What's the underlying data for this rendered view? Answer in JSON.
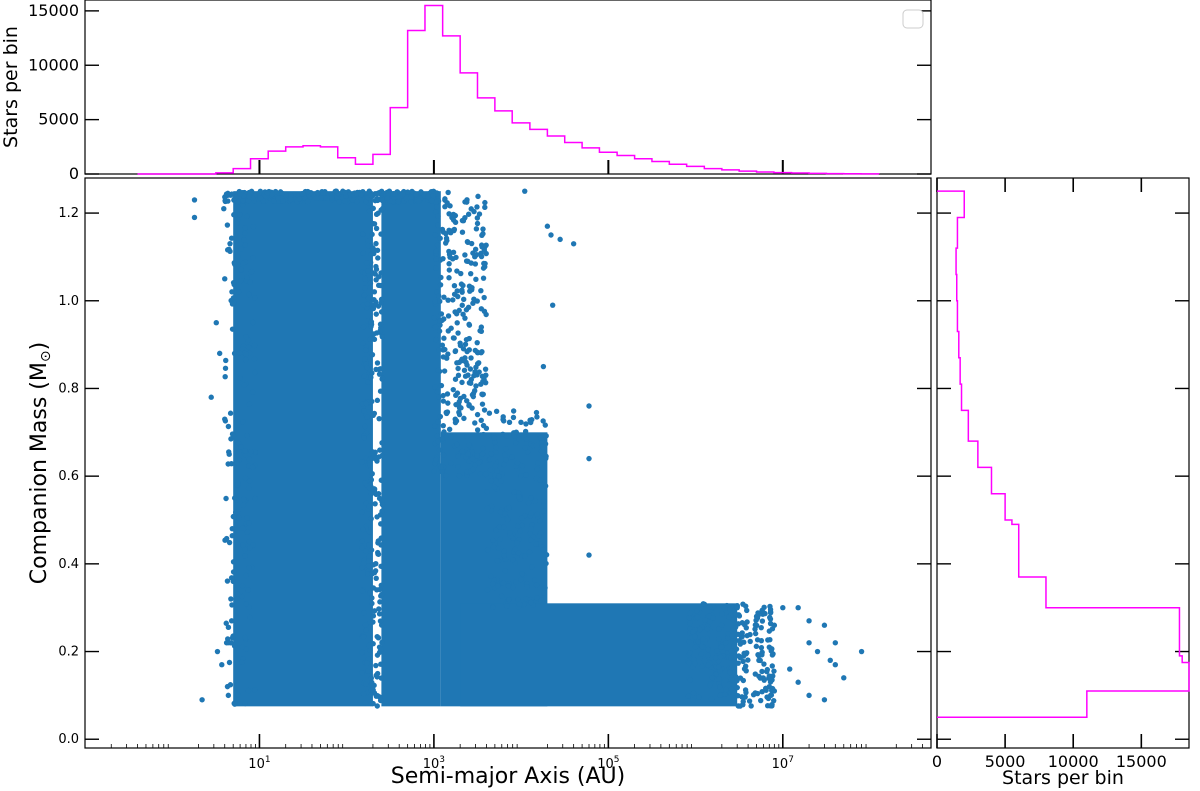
{
  "colors": {
    "scatter": "#1f77b4",
    "histogram": "#ff00ff",
    "axes": "#000000"
  },
  "chart_data": [
    {
      "id": "scatter",
      "type": "scatter",
      "xlabel_main": "Semi-major Axis (AU)",
      "ylabel_main": "Companion Mass (M",
      "ylabel_symbol": "⊙",
      "ylabel_close": ")",
      "x_scale": "log",
      "xlim": [
        0.1,
        500000000
      ],
      "ylim": [
        -0.02,
        1.28
      ],
      "x_ticks": [
        {
          "value": 10,
          "base": "10",
          "exp": "1"
        },
        {
          "value": 1000,
          "base": "10",
          "exp": "3"
        },
        {
          "value": 100000,
          "base": "10",
          "exp": "5"
        },
        {
          "value": 10000000,
          "base": "10",
          "exp": "7"
        }
      ],
      "y_ticks": [
        {
          "value": 0.0,
          "label": "0.0"
        },
        {
          "value": 0.2,
          "label": "0.2"
        },
        {
          "value": 0.4,
          "label": "0.4"
        },
        {
          "value": 0.6,
          "label": "0.6"
        },
        {
          "value": 0.8,
          "label": "0.8"
        },
        {
          "value": 1.0,
          "label": "1.0"
        },
        {
          "value": 1.2,
          "label": "1.2"
        }
      ],
      "dense_regions": [
        {
          "name": "close-binary-band",
          "x_range": [
            5,
            200
          ],
          "y_range": [
            0.075,
            1.25
          ]
        },
        {
          "name": "wide-binary-band",
          "x_range": [
            250,
            1200
          ],
          "y_range": [
            0.075,
            1.25
          ]
        },
        {
          "name": "wide-binary-tail",
          "x_range": [
            1200,
            20000
          ],
          "y_range": [
            0.075,
            0.7
          ]
        },
        {
          "name": "low-mass-tail",
          "x_range": [
            2000,
            3000000
          ],
          "y_range": [
            0.075,
            0.31
          ]
        }
      ],
      "points": [
        [
          1.8,
          1.23
        ],
        [
          1.8,
          1.19
        ],
        [
          2.2,
          0.09
        ],
        [
          2.8,
          0.78
        ],
        [
          3.2,
          0.95
        ],
        [
          3.3,
          0.2
        ],
        [
          3.5,
          0.88
        ],
        [
          4.0,
          0.73
        ],
        [
          3.7,
          0.17
        ],
        [
          4.3,
          0.12
        ],
        [
          4.0,
          1.05
        ],
        [
          4.5,
          0.65
        ],
        [
          4.7,
          0.32
        ],
        [
          5.0,
          0.36
        ],
        [
          5.2,
          0.55
        ],
        [
          4.8,
          0.27
        ],
        [
          4.2,
          0.22
        ],
        [
          3.9,
          1.21
        ],
        [
          4.4,
          0.1
        ],
        [
          13000,
          0.48
        ],
        [
          15000,
          0.67
        ],
        [
          18000,
          0.85
        ],
        [
          20000,
          1.17
        ],
        [
          22000,
          1.15
        ],
        [
          28000,
          1.14
        ],
        [
          23000,
          0.99
        ],
        [
          60000,
          0.76
        ],
        [
          60000,
          0.64
        ],
        [
          60000,
          0.42
        ],
        [
          11000,
          1.25
        ],
        [
          40000,
          1.13
        ],
        [
          3000000,
          0.3
        ],
        [
          5000000,
          0.28
        ],
        [
          8000000,
          0.26
        ],
        [
          10000000,
          0.3
        ],
        [
          15000000,
          0.3
        ],
        [
          20000000,
          0.27
        ],
        [
          30000000,
          0.26
        ],
        [
          20000000,
          0.22
        ],
        [
          25000000,
          0.2
        ],
        [
          35000000,
          0.18
        ],
        [
          40000000,
          0.17
        ],
        [
          80000000,
          0.2
        ],
        [
          20000000,
          0.1
        ],
        [
          30000000,
          0.09
        ],
        [
          15000000,
          0.13
        ],
        [
          12000000,
          0.16
        ],
        [
          40000000,
          0.22
        ],
        [
          50000000,
          0.14
        ],
        [
          7000000,
          0.21
        ]
      ]
    },
    {
      "id": "top-histogram",
      "type": "histogram",
      "ylabel": "Stars per bin",
      "x_scale": "log",
      "xlim": [
        0.1,
        500000000
      ],
      "ylim": [
        0,
        16000
      ],
      "y_ticks": [
        {
          "value": 0,
          "label": "0"
        },
        {
          "value": 5000,
          "label": "5000"
        },
        {
          "value": 10000,
          "label": "10000"
        },
        {
          "value": 15000,
          "label": "15000"
        }
      ],
      "bin_edges": [
        0.4,
        1.26,
        2.0,
        3.16,
        5.0,
        7.9,
        12.6,
        20,
        31.6,
        50,
        79,
        126,
        200,
        316,
        500,
        790,
        1260,
        2000,
        3160,
        5000,
        7900,
        12600,
        20000,
        31600,
        50000,
        79000,
        126000,
        200000,
        316000,
        500000,
        790000,
        1260000,
        2000000,
        3160000,
        5000000,
        7900000,
        12600000,
        20000000,
        31600000,
        50000000,
        79000000,
        126000000
      ],
      "counts": [
        0,
        0,
        0,
        100,
        500,
        1400,
        2100,
        2500,
        2600,
        2500,
        1500,
        900,
        1800,
        6100,
        13200,
        15500,
        12700,
        9300,
        7000,
        5800,
        4700,
        4100,
        3500,
        2900,
        2400,
        2000,
        1700,
        1400,
        1150,
        900,
        700,
        500,
        380,
        260,
        180,
        130,
        90,
        60,
        40,
        20,
        10
      ]
    },
    {
      "id": "right-histogram",
      "type": "histogram",
      "orientation": "horizontal",
      "xlabel": "Stars per bin",
      "xlim": [
        0,
        18500
      ],
      "ylim": [
        -0.02,
        1.28
      ],
      "x_ticks": [
        {
          "value": 0,
          "label": "0"
        },
        {
          "value": 5000,
          "label": "5000"
        },
        {
          "value": 10000,
          "label": "10000"
        },
        {
          "value": 15000,
          "label": "15000"
        }
      ],
      "bin_edges": [
        0.05,
        0.11,
        0.175,
        0.19,
        0.3,
        0.37,
        0.49,
        0.5,
        0.56,
        0.62,
        0.68,
        0.75,
        0.81,
        0.87,
        0.93,
        1.0,
        1.06,
        1.12,
        1.19,
        1.25
      ],
      "counts": [
        11000,
        18500,
        18000,
        17800,
        8000,
        6000,
        5500,
        5000,
        4000,
        3000,
        2300,
        1800,
        1700,
        1600,
        1500,
        1450,
        1400,
        1500,
        2000
      ]
    }
  ]
}
